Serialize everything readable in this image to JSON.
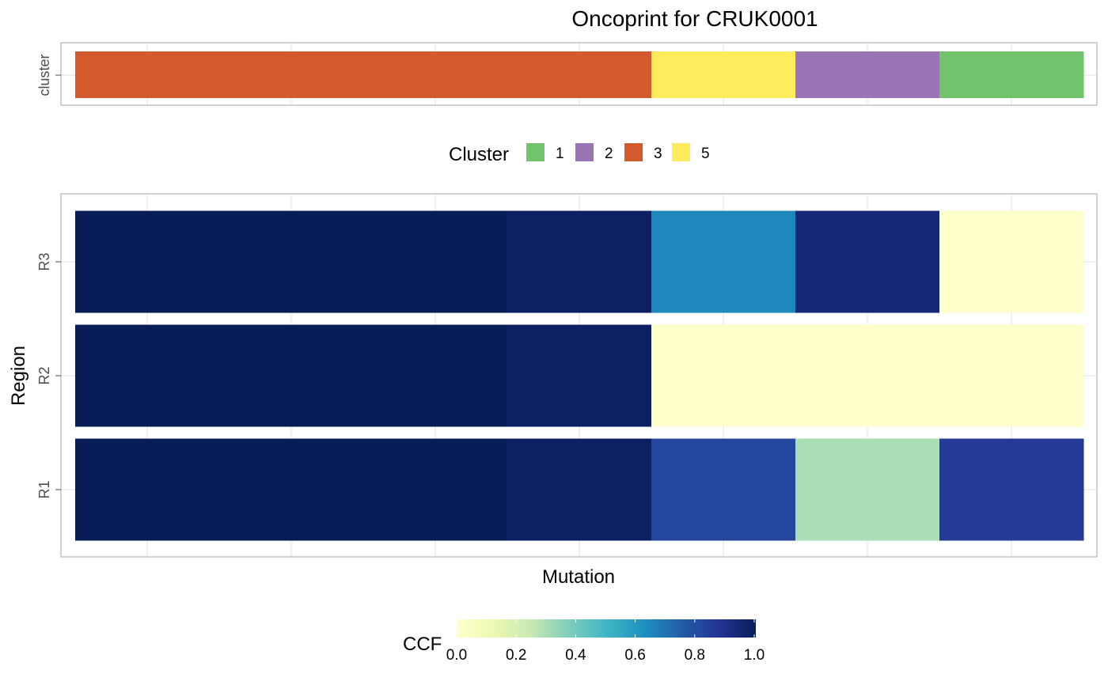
{
  "chart_data": {
    "type": "heatmap",
    "title": "Oncoprint for CRUK0001",
    "xlabel": "Mutation",
    "ylabel": "Region",
    "annotation_track": {
      "label": "cluster",
      "segments": [
        {
          "cluster": "3",
          "count": 4
        },
        {
          "cluster": "5",
          "count": 1
        },
        {
          "cluster": "2",
          "count": 1
        },
        {
          "cluster": "1",
          "count": 1
        }
      ]
    },
    "cluster_legend": {
      "title": "Cluster",
      "entries": [
        {
          "label": "1",
          "color": "#72c36c"
        },
        {
          "label": "2",
          "color": "#9a74b5"
        },
        {
          "label": "3",
          "color": "#d25a2c"
        },
        {
          "label": "5",
          "color": "#ffec5c"
        }
      ]
    },
    "regions": [
      "R3",
      "R2",
      "R1"
    ],
    "ccf_blocks": [
      {
        "mutations": 3,
        "R3": 1.0,
        "R2": 1.0,
        "R1": 1.0
      },
      {
        "mutations": 1,
        "R3": 0.98,
        "R2": 0.98,
        "R1": 0.98
      },
      {
        "mutations": 1,
        "R3": 0.65,
        "R2": 0.0,
        "R1": 0.82
      },
      {
        "mutations": 1,
        "R3": 0.94,
        "R2": 0.0,
        "R1": 0.3
      },
      {
        "mutations": 1,
        "R3": 0.0,
        "R2": 0.0,
        "R1": 0.86
      }
    ],
    "colorbar": {
      "title": "CCF",
      "ticks": [
        "0.0",
        "0.2",
        "0.4",
        "0.6",
        "0.8",
        "1.0"
      ],
      "range": [
        0,
        1
      ],
      "palette": "YlGnBu"
    },
    "grid": true
  }
}
